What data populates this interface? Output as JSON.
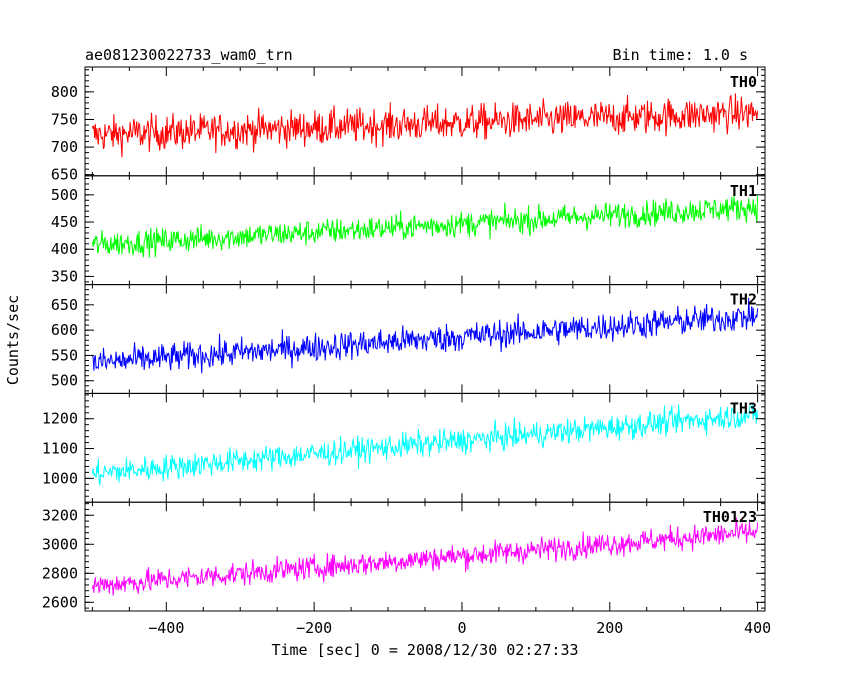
{
  "header": {
    "left_title": "ae081230022733_wam0_trn",
    "right_title": "Bin time: 1.0 s"
  },
  "chart_data": {
    "type": "line",
    "title": "ae081230022733_wam0_trn",
    "subtitle": "Bin time: 1.0 s",
    "xlabel": "Time [sec] 0 = 2008/12/30 02:27:33",
    "ylabel": "Counts/sec",
    "xlim": [
      -510,
      410
    ],
    "x_ticks": [
      -400,
      -200,
      0,
      200,
      400
    ],
    "x_tick_labels": [
      "−400",
      "−200",
      "0",
      "200",
      "400"
    ],
    "x_range_of_data": [
      -500,
      400
    ],
    "bin_time": 1.0,
    "panels": [
      {
        "name": "TH0",
        "color": "#ff0000",
        "ylim": [
          648,
          845
        ],
        "yticks": [
          650,
          700,
          750,
          800
        ],
        "start": 722,
        "end": 762,
        "noise": 27,
        "extra": [
          {
            "x": 0,
            "dy": 8
          }
        ]
      },
      {
        "name": "TH1",
        "color": "#00ff00",
        "ylim": [
          335,
          535
        ],
        "yticks": [
          350,
          400,
          450,
          500
        ],
        "start": 408,
        "end": 478,
        "noise": 20,
        "extra": []
      },
      {
        "name": "TH2",
        "color": "#0000ff",
        "ylim": [
          475,
          690
        ],
        "yticks": [
          500,
          550,
          600,
          650
        ],
        "start": 535,
        "end": 628,
        "noise": 24,
        "extra": []
      },
      {
        "name": "TH3",
        "color": "#00ffff",
        "ylim": [
          920,
          1285
        ],
        "yticks": [
          1000,
          1100,
          1200
        ],
        "start": 1015,
        "end": 1215,
        "noise": 36,
        "extra": []
      },
      {
        "name": "TH0123",
        "color": "#ff00ff",
        "ylim": [
          2540,
          3290
        ],
        "yticks": [
          2600,
          2800,
          3000,
          3200
        ],
        "start": 2715,
        "end": 3085,
        "noise": 70,
        "extra": []
      }
    ]
  }
}
